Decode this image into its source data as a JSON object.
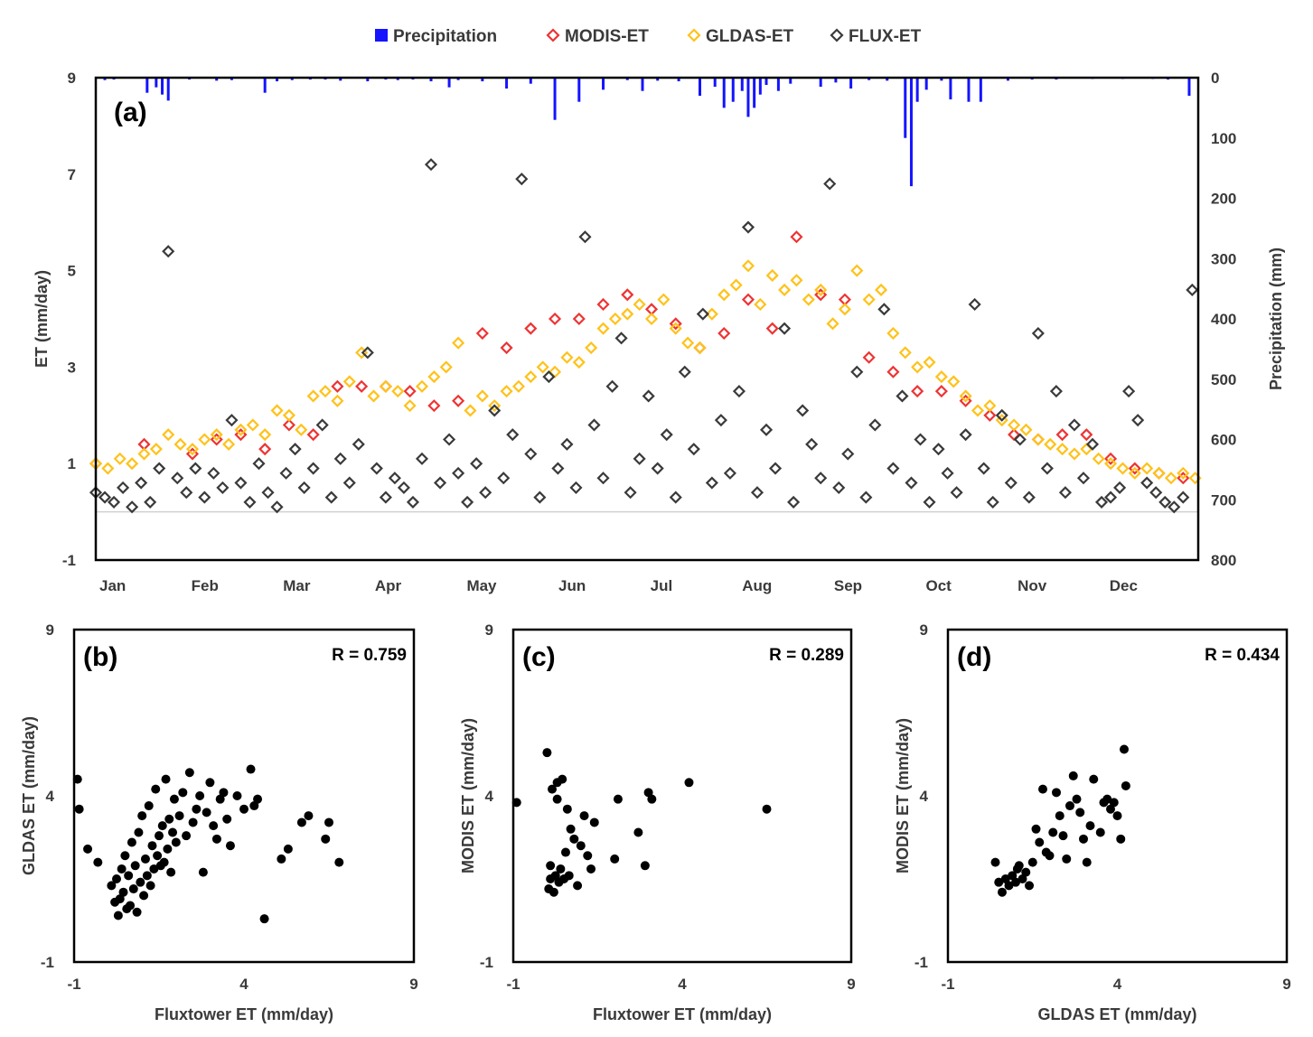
{
  "colors": {
    "precipitation": "#1414ff",
    "modis": "#ee3333",
    "gldas": "#ffc21a",
    "flux": "#3a3a3a",
    "scatter": "#000000"
  },
  "chart_data": [
    {
      "panel_label": "(a)",
      "type": "scatter",
      "legend_placement": "top",
      "legend": [
        "Precipitation",
        "MODIS-ET",
        "GLDAS-ET",
        "FLUX-ET"
      ],
      "ylabel": "ET (mm/day)",
      "y2label": "Precipitation (mm)",
      "ylim": [
        -1,
        9
      ],
      "y_ticks": [
        "9",
        "7",
        "5",
        "3",
        "1",
        "-1"
      ],
      "y2lim": [
        0,
        800
      ],
      "y2_ticks": [
        "0",
        "100",
        "200",
        "300",
        "400",
        "500",
        "600",
        "700",
        "800"
      ],
      "x_ticks": [
        "Jan",
        "Feb",
        "Mar",
        "Apr",
        "May",
        "Jun",
        "Jul",
        "Aug",
        "Sep",
        "Oct",
        "Nov",
        "Dec"
      ],
      "zero_line": 0,
      "series": [
        {
          "name": "Precipitation",
          "kind": "bar",
          "axis": "right",
          "x_day": [
            3,
            6,
            17,
            20,
            22,
            24,
            31,
            40,
            45,
            56,
            60,
            65,
            71,
            76,
            81,
            90,
            96,
            100,
            105,
            111,
            117,
            120,
            128,
            136,
            144,
            152,
            160,
            168,
            176,
            181,
            186,
            193,
            200,
            205,
            208,
            211,
            214,
            216,
            218,
            220,
            222,
            226,
            230,
            240,
            245,
            250,
            256,
            262,
            268,
            270,
            272,
            275,
            280,
            283,
            289,
            293,
            302,
            310,
            318,
            330,
            340,
            350,
            355,
            362
          ],
          "values": [
            4,
            3,
            25,
            16,
            28,
            38,
            3,
            5,
            4,
            25,
            6,
            4,
            3,
            3,
            5,
            6,
            3,
            4,
            3,
            6,
            16,
            4,
            6,
            18,
            10,
            70,
            40,
            20,
            4,
            22,
            5,
            6,
            30,
            15,
            50,
            40,
            22,
            65,
            50,
            28,
            12,
            22,
            10,
            15,
            8,
            18,
            4,
            5,
            100,
            180,
            40,
            20,
            5,
            36,
            40,
            40,
            5,
            3,
            3,
            2,
            2,
            2,
            3,
            30
          ]
        },
        {
          "name": "MODIS-ET",
          "kind": "points",
          "x_day": [
            0,
            16,
            32,
            40,
            48,
            56,
            64,
            72,
            80,
            88,
            96,
            104,
            112,
            120,
            128,
            136,
            144,
            152,
            160,
            168,
            176,
            184,
            192,
            200,
            208,
            216,
            224,
            232,
            240,
            248,
            256,
            264,
            272,
            280,
            288,
            296,
            304,
            312,
            320,
            328,
            336,
            344,
            352,
            360
          ],
          "values": [
            1.0,
            1.4,
            1.2,
            1.5,
            1.6,
            1.3,
            1.8,
            1.6,
            2.6,
            2.6,
            2.6,
            2.5,
            2.2,
            2.3,
            3.7,
            3.4,
            3.8,
            4.0,
            4.0,
            4.3,
            4.5,
            4.2,
            3.9,
            3.4,
            3.7,
            4.4,
            3.8,
            5.7,
            4.5,
            4.4,
            3.2,
            2.9,
            2.5,
            2.5,
            2.3,
            2.0,
            1.6,
            1.5,
            1.6,
            1.6,
            1.1,
            0.9,
            0.8,
            0.7
          ]
        },
        {
          "name": "GLDAS-ET",
          "kind": "points",
          "x_day": [
            0,
            4,
            8,
            12,
            16,
            20,
            24,
            28,
            32,
            36,
            40,
            44,
            48,
            52,
            56,
            60,
            64,
            68,
            72,
            76,
            80,
            84,
            88,
            92,
            96,
            100,
            104,
            108,
            112,
            116,
            120,
            124,
            128,
            132,
            136,
            140,
            144,
            148,
            152,
            156,
            160,
            164,
            168,
            172,
            176,
            180,
            184,
            188,
            192,
            196,
            200,
            204,
            208,
            212,
            216,
            220,
            224,
            228,
            232,
            236,
            240,
            244,
            248,
            252,
            256,
            260,
            264,
            268,
            272,
            276,
            280,
            284,
            288,
            292,
            296,
            300,
            304,
            308,
            312,
            316,
            320,
            324,
            328,
            332,
            336,
            340,
            344,
            348,
            352,
            356,
            360,
            364
          ],
          "values": [
            1.0,
            0.9,
            1.1,
            1.0,
            1.2,
            1.3,
            1.6,
            1.4,
            1.3,
            1.5,
            1.6,
            1.4,
            1.7,
            1.8,
            1.6,
            2.1,
            2.0,
            1.7,
            2.4,
            2.5,
            2.3,
            2.7,
            3.3,
            2.4,
            2.6,
            2.5,
            2.2,
            2.6,
            2.8,
            3.0,
            3.5,
            2.1,
            2.4,
            2.2,
            2.5,
            2.6,
            2.8,
            3.0,
            2.9,
            3.2,
            3.1,
            3.4,
            3.8,
            4.0,
            4.1,
            4.3,
            4.0,
            4.4,
            3.8,
            3.5,
            3.4,
            4.1,
            4.5,
            4.7,
            5.1,
            4.3,
            4.9,
            4.6,
            4.8,
            4.4,
            4.6,
            3.9,
            4.2,
            5.0,
            4.4,
            4.6,
            3.7,
            3.3,
            3.0,
            3.1,
            2.8,
            2.7,
            2.4,
            2.1,
            2.2,
            1.9,
            1.8,
            1.7,
            1.5,
            1.4,
            1.3,
            1.2,
            1.3,
            1.1,
            1.0,
            0.9,
            0.8,
            0.9,
            0.8,
            0.7,
            0.8,
            0.7
          ]
        },
        {
          "name": "FLUX-ET",
          "kind": "points",
          "x_day": [
            0,
            3,
            6,
            9,
            12,
            15,
            18,
            21,
            24,
            27,
            30,
            33,
            36,
            39,
            42,
            45,
            48,
            51,
            54,
            57,
            60,
            63,
            66,
            69,
            72,
            75,
            78,
            81,
            84,
            87,
            90,
            93,
            96,
            99,
            102,
            105,
            108,
            111,
            114,
            117,
            120,
            123,
            126,
            129,
            132,
            135,
            138,
            141,
            144,
            147,
            150,
            153,
            156,
            159,
            162,
            165,
            168,
            171,
            174,
            177,
            180,
            183,
            186,
            189,
            192,
            195,
            198,
            201,
            204,
            207,
            210,
            213,
            216,
            219,
            222,
            225,
            228,
            231,
            234,
            237,
            240,
            243,
            246,
            249,
            252,
            255,
            258,
            261,
            264,
            267,
            270,
            273,
            276,
            279,
            282,
            285,
            288,
            291,
            294,
            297,
            300,
            303,
            306,
            309,
            312,
            315,
            318,
            321,
            324,
            327,
            330,
            333,
            336,
            339,
            342,
            345,
            348,
            351,
            354,
            357,
            360,
            363
          ],
          "values": [
            0.4,
            0.3,
            0.2,
            0.5,
            0.1,
            0.6,
            0.2,
            0.9,
            5.4,
            0.7,
            0.4,
            0.9,
            0.3,
            0.8,
            0.5,
            1.9,
            0.6,
            0.2,
            1.0,
            0.4,
            0.1,
            0.8,
            1.3,
            0.5,
            0.9,
            1.8,
            0.3,
            1.1,
            0.6,
            1.4,
            3.3,
            0.9,
            0.3,
            0.7,
            0.5,
            0.2,
            1.1,
            7.2,
            0.6,
            1.5,
            0.8,
            0.2,
            1.0,
            0.4,
            2.1,
            0.7,
            1.6,
            6.9,
            1.2,
            0.3,
            2.8,
            0.9,
            1.4,
            0.5,
            5.7,
            1.8,
            0.7,
            2.6,
            3.6,
            0.4,
            1.1,
            2.4,
            0.9,
            1.6,
            0.3,
            2.9,
            1.3,
            4.1,
            0.6,
            1.9,
            0.8,
            2.5,
            5.9,
            0.4,
            1.7,
            0.9,
            3.8,
            0.2,
            2.1,
            1.4,
            0.7,
            6.8,
            0.5,
            1.2,
            2.9,
            0.3,
            1.8,
            4.2,
            0.9,
            2.4,
            0.6,
            1.5,
            0.2,
            1.3,
            0.8,
            0.4,
            1.6,
            4.3,
            0.9,
            0.2,
            2.0,
            0.6,
            1.5,
            0.3,
            3.7,
            0.9,
            2.5,
            0.4,
            1.8,
            0.7,
            1.4,
            0.2,
            0.3,
            0.5,
            2.5,
            1.9,
            0.6,
            0.4,
            0.2,
            0.1,
            0.3,
            4.6
          ]
        }
      ]
    },
    {
      "panel_label": "(b)",
      "type": "scatter",
      "r_text": "R = 0.759",
      "xlabel": "Fluxtower ET (mm/day)",
      "ylabel": "GLDAS ET (mm/day)",
      "xlim": [
        -1,
        9
      ],
      "ylim": [
        -1,
        9
      ],
      "x_ticks": [
        "-1",
        "4",
        "9"
      ],
      "y_ticks": [
        "9",
        "4",
        "-1"
      ],
      "x": [
        -0.9,
        -0.85,
        -0.6,
        -0.3,
        0.1,
        0.2,
        0.25,
        0.3,
        0.35,
        0.4,
        0.45,
        0.5,
        0.55,
        0.6,
        0.65,
        0.7,
        0.75,
        0.8,
        0.85,
        0.9,
        0.95,
        1.0,
        1.05,
        1.1,
        1.15,
        1.2,
        1.25,
        1.3,
        1.35,
        1.4,
        1.45,
        1.5,
        1.55,
        1.6,
        1.65,
        1.7,
        1.75,
        1.8,
        1.85,
        1.9,
        1.95,
        2.0,
        2.1,
        2.2,
        2.3,
        2.4,
        2.5,
        2.6,
        2.7,
        2.8,
        2.9,
        3.0,
        3.1,
        3.2,
        3.3,
        3.4,
        3.5,
        3.6,
        3.8,
        4.0,
        4.2,
        4.3,
        4.4,
        4.6,
        5.1,
        5.3,
        5.7,
        5.9,
        6.4,
        6.5,
        6.8
      ],
      "y": [
        4.5,
        3.6,
        2.4,
        2.0,
        1.3,
        0.8,
        1.5,
        0.4,
        0.9,
        1.8,
        1.1,
        2.2,
        0.6,
        1.6,
        0.7,
        2.6,
        1.2,
        1.9,
        0.5,
        2.9,
        1.4,
        3.4,
        1.0,
        2.1,
        1.6,
        3.7,
        1.3,
        2.5,
        1.8,
        4.2,
        2.2,
        2.8,
        1.9,
        3.1,
        2.0,
        4.5,
        2.4,
        3.3,
        1.7,
        2.9,
        3.9,
        2.6,
        3.4,
        4.1,
        2.8,
        4.7,
        3.2,
        3.6,
        4.0,
        1.7,
        3.5,
        4.4,
        3.1,
        2.7,
        3.9,
        4.1,
        3.3,
        2.5,
        4.0,
        3.6,
        4.8,
        3.7,
        3.9,
        0.3,
        2.1,
        2.4,
        3.2,
        3.4,
        2.7,
        3.2,
        2.0
      ]
    },
    {
      "panel_label": "(c)",
      "type": "scatter",
      "r_text": "R = 0.289",
      "xlabel": "Fluxtower ET (mm/day)",
      "ylabel": "MODIS ET (mm/day)",
      "xlim": [
        -1,
        9
      ],
      "ylim": [
        -1,
        9
      ],
      "x_ticks": [
        "-1",
        "4",
        "9"
      ],
      "y_ticks": [
        "9",
        "4",
        "-1"
      ],
      "x": [
        -0.9,
        0.0,
        0.05,
        0.1,
        0.1,
        0.15,
        0.2,
        0.25,
        0.3,
        0.3,
        0.35,
        0.4,
        0.45,
        0.5,
        0.55,
        0.6,
        0.65,
        0.7,
        0.8,
        0.9,
        1.0,
        1.1,
        1.2,
        1.3,
        1.4,
        2.0,
        2.1,
        2.7,
        2.9,
        3.0,
        3.1,
        4.2,
        6.5
      ],
      "y": [
        3.8,
        5.3,
        1.2,
        1.5,
        1.9,
        4.2,
        1.1,
        1.6,
        4.4,
        3.9,
        1.4,
        1.8,
        4.5,
        1.5,
        2.3,
        3.6,
        1.6,
        3.0,
        2.7,
        1.3,
        2.5,
        3.4,
        2.2,
        1.8,
        3.2,
        2.1,
        3.9,
        2.9,
        1.9,
        4.1,
        3.9,
        4.4,
        3.6
      ]
    },
    {
      "panel_label": "(d)",
      "type": "scatter",
      "r_text": "R = 0.434",
      "xlabel": "GLDAS ET (mm/day)",
      "ylabel": "MODIS ET (mm/day)",
      "xlim": [
        -1,
        9
      ],
      "ylim": [
        -1,
        9
      ],
      "x_ticks": [
        "-1",
        "4",
        "9"
      ],
      "y_ticks": [
        "9",
        "4",
        "-1"
      ],
      "x": [
        0.4,
        0.5,
        0.6,
        0.7,
        0.8,
        0.9,
        1.0,
        1.05,
        1.1,
        1.2,
        1.3,
        1.4,
        1.5,
        1.6,
        1.7,
        1.8,
        1.9,
        2.0,
        2.1,
        2.2,
        2.3,
        2.4,
        2.5,
        2.6,
        2.7,
        2.8,
        2.9,
        3.0,
        3.1,
        3.2,
        3.3,
        3.5,
        3.6,
        3.7,
        3.8,
        3.9,
        4.0,
        4.1,
        4.2,
        4.25
      ],
      "y": [
        2.0,
        1.4,
        1.1,
        1.5,
        1.3,
        1.6,
        1.4,
        1.8,
        1.9,
        1.5,
        1.7,
        1.3,
        2.0,
        3.0,
        2.6,
        4.2,
        2.3,
        2.2,
        2.9,
        4.1,
        3.4,
        2.8,
        2.1,
        3.7,
        4.6,
        3.9,
        3.5,
        2.7,
        2.0,
        3.1,
        4.5,
        2.9,
        3.8,
        3.9,
        3.6,
        3.8,
        3.4,
        2.7,
        5.4,
        4.3
      ]
    }
  ]
}
